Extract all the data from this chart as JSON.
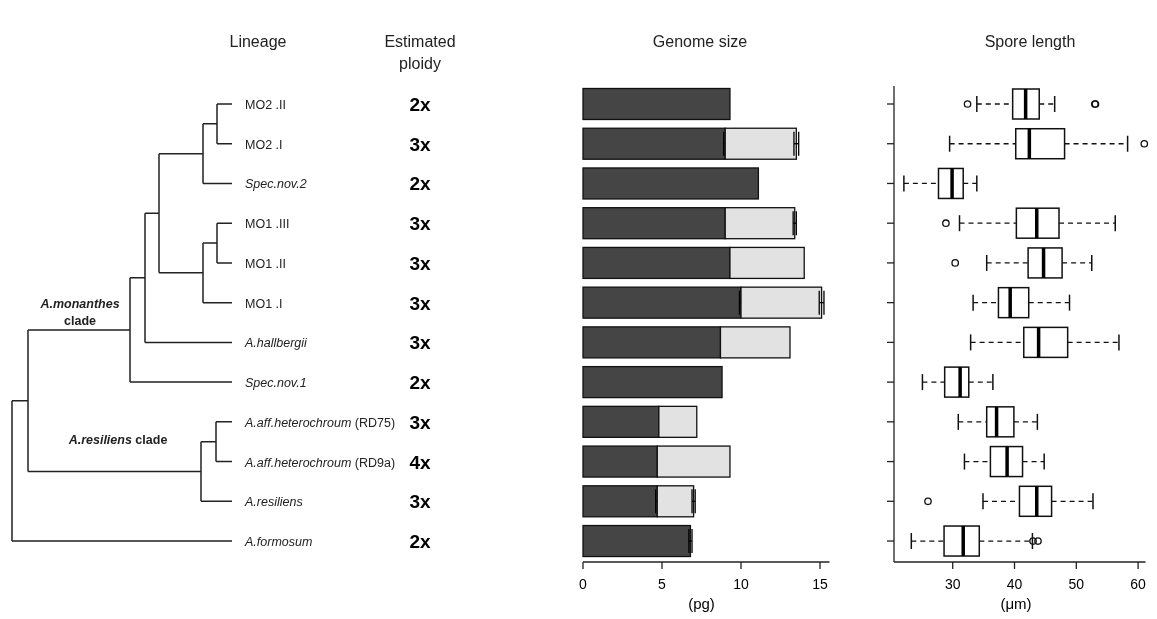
{
  "chart_data": [
    {
      "type": "other",
      "title": "Lineage",
      "categories": [
        "MO2 .II",
        "MO2 .I",
        "Spec.nov.2",
        "MO1 .III",
        "MO1 .II",
        "MO1 .I",
        "A.hallbergii",
        "Spec.nov.1",
        "A.aff.heterochroum (RD75)",
        "A.aff.heterochroum (RD9a)",
        "A.resiliens",
        "A.formosum"
      ],
      "annotations": [
        "A.monanthes clade",
        "A.resiliens clade"
      ]
    },
    {
      "type": "other",
      "title": "Estimated ploidy",
      "categories": [
        "2x",
        "3x",
        "2x",
        "3x",
        "3x",
        "3x",
        "3x",
        "2x",
        "3x",
        "4x",
        "3x",
        "2x"
      ]
    },
    {
      "type": "bar",
      "title": "Genome size",
      "xlabel": "(pg)",
      "orientation": "horizontal",
      "stacked": true,
      "categories": [
        null,
        null,
        null,
        null,
        null,
        null,
        null,
        null,
        null,
        null,
        null,
        null
      ],
      "xlim": [
        0,
        15.6
      ],
      "xticks": [
        0,
        5,
        10,
        15
      ],
      "series": [
        {
          "color": "#454545",
          "values": [
            9.3,
            9.0,
            11.1,
            9.0,
            9.3,
            10.0,
            8.7,
            8.8,
            4.8,
            4.7,
            4.7,
            6.8
          ],
          "errors": [
            null,
            0.1,
            null,
            null,
            null,
            0.1,
            null,
            null,
            null,
            null,
            0.1,
            0.1
          ]
        },
        {
          "color": "#e2e2e2",
          "values": [
            null,
            4.5,
            null,
            4.4,
            4.7,
            5.1,
            4.4,
            null,
            2.4,
            4.6,
            2.3,
            null
          ],
          "errors": [
            null,
            0.15,
            null,
            0.1,
            null,
            0.15,
            null,
            null,
            null,
            null,
            0.1,
            null
          ]
        }
      ]
    },
    {
      "type": "box",
      "title": "Spore length",
      "xlabel": "(μm)",
      "orientation": "horizontal",
      "categories": [
        null,
        null,
        null,
        null,
        null,
        null,
        null,
        null,
        null,
        null,
        null,
        null
      ],
      "xlim": [
        20.5,
        61.2
      ],
      "xticks": [
        30,
        40,
        50,
        60
      ],
      "boxes": [
        {
          "low": 33.9,
          "q1": 39.7,
          "median": 41.8,
          "q3": 44.0,
          "high": 46.5,
          "outliers": [
            32.4,
            53.0,
            53.1
          ]
        },
        {
          "low": 29.5,
          "q1": 40.2,
          "median": 42.4,
          "q3": 48.1,
          "high": 58.3,
          "outliers": [
            61.0
          ]
        },
        {
          "low": 22.1,
          "q1": 27.7,
          "median": 29.9,
          "q3": 31.7,
          "high": 33.9
        },
        {
          "low": 31.1,
          "q1": 40.3,
          "median": 43.6,
          "q3": 47.2,
          "high": 56.3,
          "outliers": [
            28.9
          ]
        },
        {
          "low": 35.5,
          "q1": 42.2,
          "median": 44.7,
          "q3": 47.7,
          "high": 52.5,
          "outliers": [
            30.4
          ]
        },
        {
          "low": 33.3,
          "q1": 37.4,
          "median": 39.3,
          "q3": 42.3,
          "high": 48.9
        },
        {
          "low": 32.9,
          "q1": 41.5,
          "median": 43.9,
          "q3": 48.6,
          "high": 56.9
        },
        {
          "low": 25.1,
          "q1": 28.7,
          "median": 31.2,
          "q3": 32.6,
          "high": 36.5
        },
        {
          "low": 30.9,
          "q1": 35.5,
          "median": 37.1,
          "q3": 39.9,
          "high": 43.7
        },
        {
          "low": 31.9,
          "q1": 36.1,
          "median": 38.8,
          "q3": 41.3,
          "high": 44.8
        },
        {
          "low": 34.9,
          "q1": 40.8,
          "median": 43.6,
          "q3": 46.0,
          "high": 52.7,
          "outliers": [
            26.0
          ]
        },
        {
          "low": 23.3,
          "q1": 28.6,
          "median": 31.7,
          "q3": 34.3,
          "high": 42.9,
          "outliers": [
            43.0,
            43.8
          ]
        }
      ]
    }
  ]
}
